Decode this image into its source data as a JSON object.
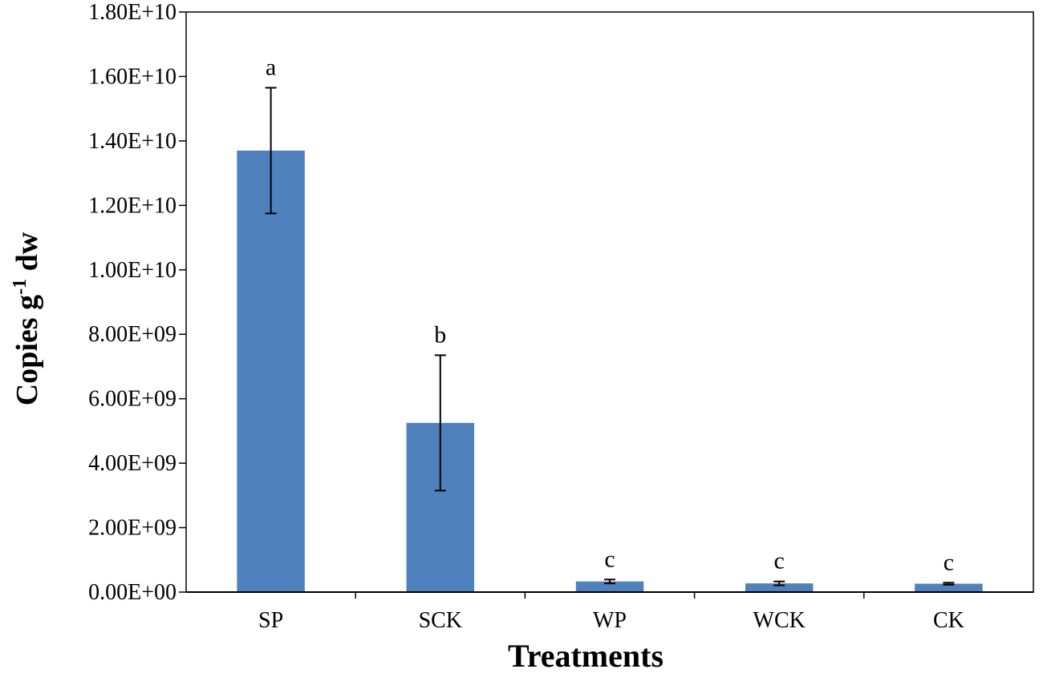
{
  "chart_data": {
    "type": "bar",
    "title": "",
    "xlabel": "Treatments",
    "ylabel": {
      "prefix": "Copies g",
      "superscript": "-1",
      "suffix": " dw"
    },
    "categories": [
      "SP",
      "SCK",
      "WP",
      "WCK",
      "CK"
    ],
    "values": [
      13700000000,
      5250000000,
      330000000,
      270000000,
      260000000
    ],
    "errors": [
      1950000000,
      2100000000,
      60000000,
      60000000,
      30000000
    ],
    "significance": [
      "a",
      "b",
      "c",
      "c",
      "c"
    ],
    "ylim": [
      0,
      18000000000
    ],
    "yticks": [
      0,
      2000000000,
      4000000000,
      6000000000,
      8000000000,
      10000000000,
      12000000000,
      14000000000,
      16000000000,
      18000000000
    ],
    "ytick_labels": [
      "0.00E+00",
      "2.00E+09",
      "4.00E+09",
      "6.00E+09",
      "8.00E+09",
      "1.00E+10",
      "1.20E+10",
      "1.40E+10",
      "1.60E+10",
      "1.80E+10"
    ],
    "bar_color": "#4F81BD",
    "grid": false,
    "legend": "none"
  }
}
